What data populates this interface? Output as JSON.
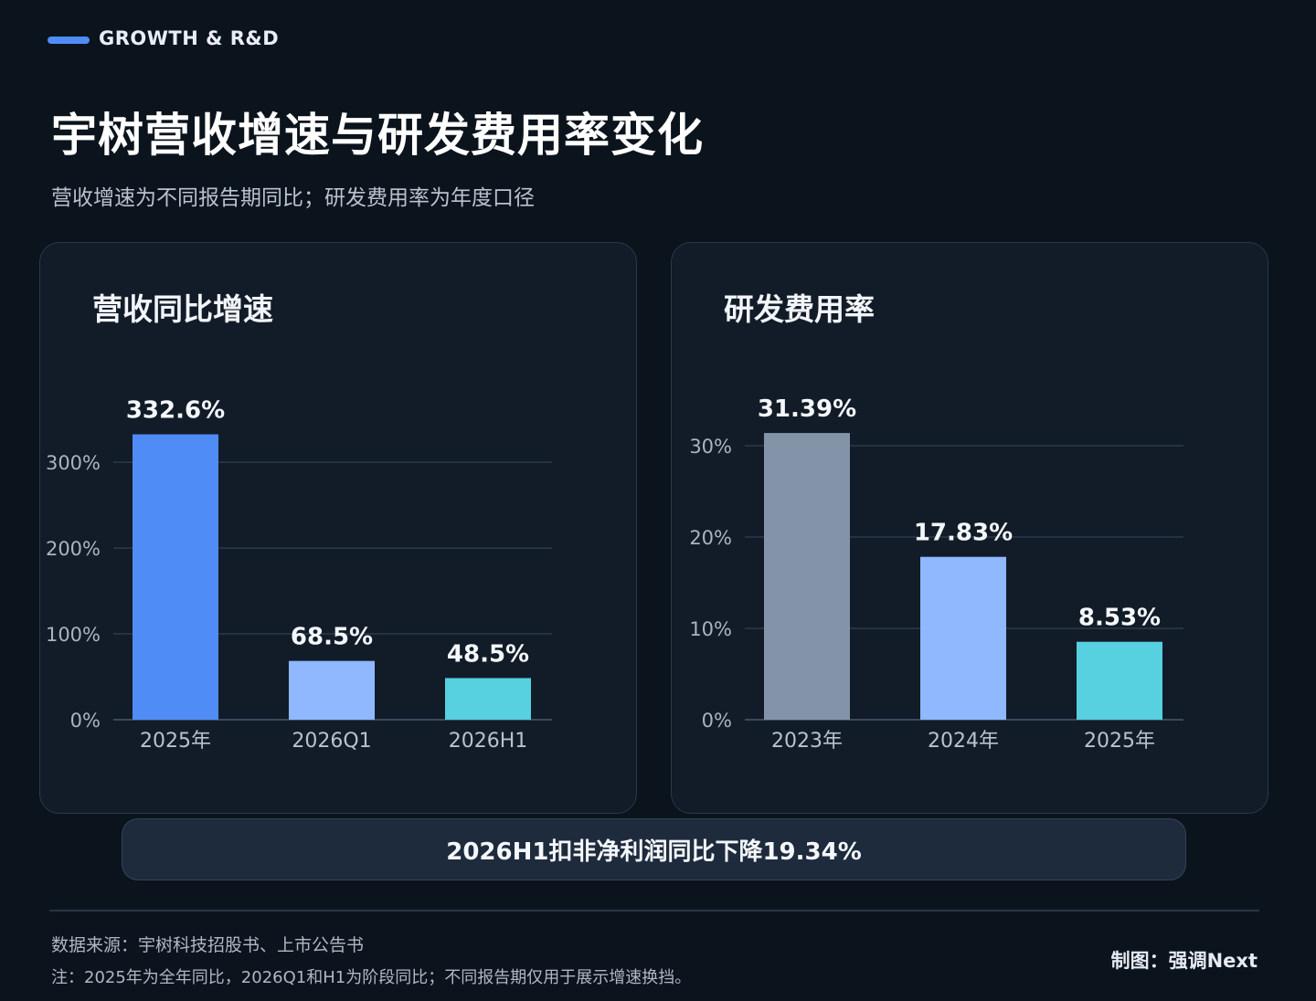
{
  "header": {
    "tag": "GROWTH & R&D",
    "title": "宇树营收增速与研发费用率变化",
    "subtitle": "营收增速为不同报告期同比；研发费用率为年度口径"
  },
  "chart_data": [
    {
      "type": "bar",
      "title": "营收同比增速",
      "categories": [
        "2025年",
        "2026Q1",
        "2026H1"
      ],
      "values": [
        332.6,
        68.5,
        48.5
      ],
      "value_labels": [
        "332.6%",
        "68.5%",
        "48.5%"
      ],
      "colors": [
        "#4f8cf6",
        "#8fb8ff",
        "#57d0e0"
      ],
      "yticks": [
        0,
        100,
        200,
        300
      ],
      "ytick_labels": [
        "0%",
        "100%",
        "200%",
        "300%"
      ],
      "ylim": [
        0,
        330
      ],
      "grid": true,
      "xlabel": "",
      "ylabel": ""
    },
    {
      "type": "bar",
      "title": "研发费用率",
      "categories": [
        "2023年",
        "2024年",
        "2025年"
      ],
      "values": [
        31.39,
        17.83,
        8.53
      ],
      "value_labels": [
        "31.39%",
        "17.83%",
        "8.53%"
      ],
      "colors": [
        "#8394a8",
        "#8fb8ff",
        "#57d0e0"
      ],
      "yticks": [
        0,
        10,
        20,
        30
      ],
      "ytick_labels": [
        "0%",
        "10%",
        "20%",
        "30%"
      ],
      "ylim": [
        0,
        30
      ],
      "grid": true,
      "xlabel": "",
      "ylabel": ""
    }
  ],
  "callout": "2026H1扣非净利润同比下降19.34%",
  "footer": {
    "source": "数据来源：宇树科技招股书、上市公告书",
    "note": "注：2025年为全年同比，2026Q1和H1为阶段同比；不同报告期仅用于展示增速换挡。",
    "credit": "制图：强调Next"
  },
  "colors": {
    "accent": "#4f8df6",
    "background": "#0b131c",
    "panel": "#121c28"
  }
}
